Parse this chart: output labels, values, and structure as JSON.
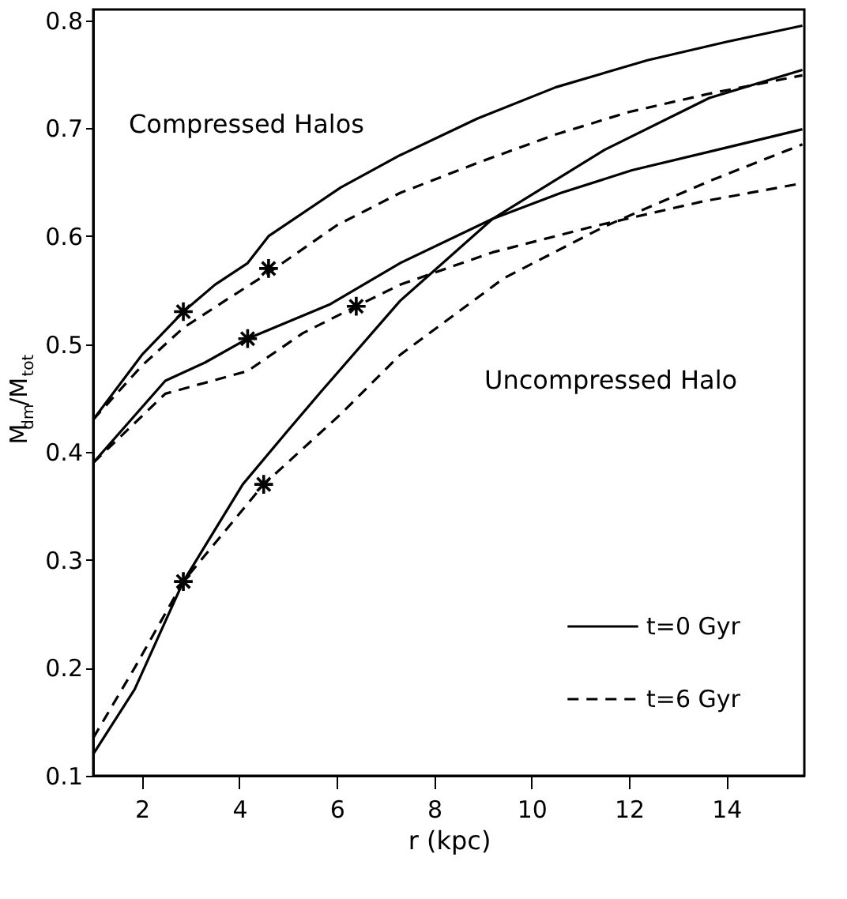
{
  "chart_data": {
    "type": "line",
    "xlabel": "r (kpc)",
    "ylabel": "M$_{dm}$/M$_{tot}$",
    "xlim": [
      1,
      15.6
    ],
    "ylim": [
      0.1,
      0.81
    ],
    "xticks": [
      2,
      4,
      6,
      8,
      10,
      12,
      14
    ],
    "yticks": [
      0.1,
      0.2,
      0.3,
      0.4,
      0.5,
      0.6,
      0.7,
      0.8
    ],
    "grid": false,
    "legend": "bottom right",
    "marker": "none",
    "annotations": [
      "Compressed Halos",
      "Uncompressed Halo"
    ],
    "series": [
      {
        "name": "t=0 Gyr",
        "color": "#000000",
        "line_style": "solid",
        "x": [
          1.0,
          2.0,
          2.85,
          3.5,
          4.17,
          4.6,
          6.08,
          7.3,
          8.89,
          10.5,
          12.38,
          14.0,
          15.56
        ],
        "values": [
          0.43,
          0.49,
          0.53,
          0.555,
          0.575,
          0.6,
          0.645,
          0.675,
          0.709,
          0.738,
          0.763,
          0.78,
          0.795
        ]
      },
      {
        "name": "t=6 Gyr",
        "color": "#000000",
        "line_style": "dashed",
        "x": [
          1.0,
          2.0,
          2.85,
          3.7,
          4.6,
          6.0,
          7.3,
          8.9,
          10.48,
          12.0,
          13.65,
          15.56
        ],
        "values": [
          0.43,
          0.48,
          0.515,
          0.54,
          0.566,
          0.61,
          0.64,
          0.668,
          0.694,
          0.715,
          0.732,
          0.749
        ]
      },
      {
        "color": "#000000",
        "line_style": "solid",
        "x": [
          1.0,
          2.48,
          3.3,
          4.17,
          5.87,
          7.3,
          9.2,
          10.6,
          12.06,
          14.0,
          15.56
        ],
        "values": [
          0.39,
          0.466,
          0.483,
          0.505,
          0.537,
          0.575,
          0.616,
          0.64,
          0.661,
          0.682,
          0.699
        ]
      },
      {
        "color": "#000000",
        "line_style": "dashed",
        "x": [
          1.0,
          2.48,
          4.17,
          5.3,
          6.4,
          7.3,
          9.2,
          11.27,
          13.5,
          15.56
        ],
        "values": [
          0.39,
          0.454,
          0.475,
          0.51,
          0.535,
          0.555,
          0.585,
          0.609,
          0.632,
          0.649
        ]
      },
      {
        "color": "#000000",
        "line_style": "solid",
        "x": [
          1.0,
          1.85,
          2.85,
          4.07,
          5.0,
          5.66,
          7.3,
          9.2,
          11.5,
          13.65,
          15.56
        ],
        "values": [
          0.12,
          0.18,
          0.28,
          0.37,
          0.42,
          0.455,
          0.54,
          0.616,
          0.68,
          0.728,
          0.754
        ]
      },
      {
        "color": "#000000",
        "line_style": "dashed",
        "x": [
          1.0,
          1.85,
          2.85,
          4.5,
          6.08,
          7.3,
          9.43,
          11.5,
          13.65,
          15.56
        ],
        "values": [
          0.135,
          0.2,
          0.28,
          0.37,
          0.435,
          0.49,
          0.561,
          0.609,
          0.651,
          0.685
        ]
      },
      {
        "type": "scatter",
        "marker": "cross",
        "color": "#000000",
        "x": [
          2.85,
          4.6,
          4.17,
          6.4,
          2.85,
          4.5
        ],
        "values": [
          0.53,
          0.57,
          0.505,
          0.535,
          0.28,
          0.37
        ]
      }
    ]
  }
}
